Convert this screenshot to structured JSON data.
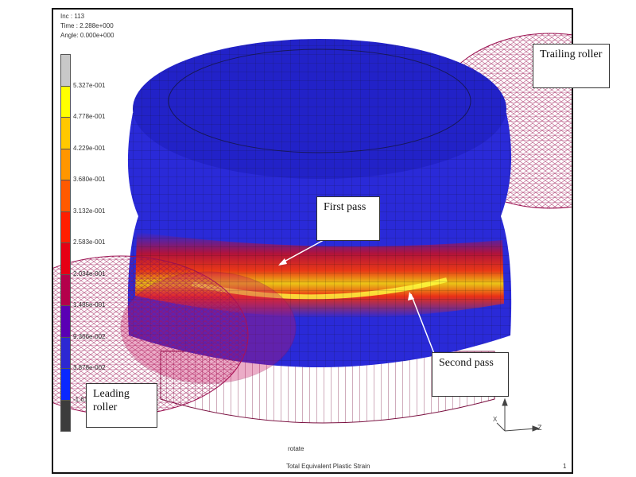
{
  "header": {
    "inc": "Inc :   113",
    "time": "Time : 2.288e+000",
    "angle": "Angle: 0.000e+000"
  },
  "legend": {
    "labels": [
      "5.327e-001",
      "4.778e-001",
      "4.229e-001",
      "3.680e-001",
      "3.132e-001",
      "2.583e-001",
      "2.034e-001",
      "1.485e-001",
      "9.366e-002",
      "3.878e-002",
      "-1.61e-002"
    ],
    "colors": [
      "#c8c8c8",
      "#ffff00",
      "#ffc800",
      "#ff9600",
      "#ff5a00",
      "#ff1e00",
      "#e60014",
      "#b4004b",
      "#5a00b4",
      "#2d28d2",
      "#0a28ff",
      "#3c3c3c"
    ]
  },
  "callouts": {
    "trailing": "Trailing roller",
    "first": "First pass",
    "second": "Second pass",
    "leading": "Leading roller"
  },
  "footer": {
    "view": "rotate",
    "quantity": "Total Equivalent Plastic Strain",
    "page": "1"
  },
  "axes": {
    "x": "X",
    "y": "Y",
    "z": "Z"
  },
  "colors": {
    "billet": "#2a2ad8",
    "roller_mesh": "#9a1050",
    "hot": "#ffe020"
  }
}
